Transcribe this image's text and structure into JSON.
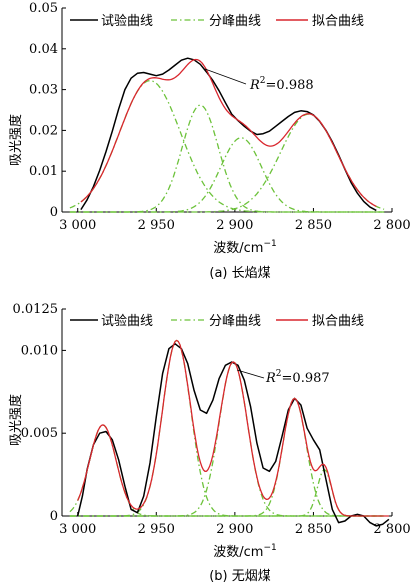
{
  "colors": {
    "experimental": "#000000",
    "component": "#6cc23a",
    "fitted": "#d9272e"
  },
  "legend": {
    "experimental": "试验曲线",
    "component": "分峰曲线",
    "fitted": "拟合曲线"
  },
  "ylabel": "吸光强度",
  "xlabel": "波数/cm",
  "xlabel_sup": "−1",
  "chart_data": [
    {
      "type": "line",
      "caption": "(a)  长焰煤",
      "annotation": {
        "symbol": "R",
        "power": "2",
        "text": "=0.988",
        "at": [
          2934,
          0.0285
        ]
      },
      "xlim": [
        3010,
        2800
      ],
      "ylim": [
        0,
        0.05
      ],
      "xticks": [
        3000,
        2950,
        2900,
        2850,
        2800
      ],
      "xticklabels": [
        "3 000",
        "2 950",
        "2 900",
        "2 850",
        "2 800"
      ],
      "yticks": [
        0,
        0.01,
        0.02,
        0.03,
        0.04,
        0.05
      ],
      "yticklabels": [
        "0",
        "0.01",
        "0.02",
        "0.03",
        "0.04",
        "0.05"
      ],
      "components": [
        {
          "center": 2954,
          "height": 0.0322,
          "width": 19.4
        },
        {
          "center": 2922,
          "height": 0.0262,
          "width": 11.5
        },
        {
          "center": 2896,
          "height": 0.0182,
          "width": 13.0
        },
        {
          "center": 2853,
          "height": 0.024,
          "width": 18.0
        }
      ],
      "experimental": [
        [
          2998,
          0.0006
        ],
        [
          2994,
          0.003
        ],
        [
          2990,
          0.0062
        ],
        [
          2986,
          0.0102
        ],
        [
          2982,
          0.0148
        ],
        [
          2978,
          0.0198
        ],
        [
          2974,
          0.0252
        ],
        [
          2970,
          0.03
        ],
        [
          2966,
          0.0328
        ],
        [
          2962,
          0.034
        ],
        [
          2958,
          0.0342
        ],
        [
          2954,
          0.0338
        ],
        [
          2950,
          0.0334
        ],
        [
          2946,
          0.0338
        ],
        [
          2942,
          0.0348
        ],
        [
          2938,
          0.036
        ],
        [
          2934,
          0.0372
        ],
        [
          2930,
          0.0377
        ],
        [
          2926,
          0.0373
        ],
        [
          2922,
          0.0362
        ],
        [
          2918,
          0.0343
        ],
        [
          2914,
          0.0322
        ],
        [
          2910,
          0.0297
        ],
        [
          2906,
          0.0268
        ],
        [
          2902,
          0.024
        ],
        [
          2898,
          0.0224
        ],
        [
          2894,
          0.021
        ],
        [
          2890,
          0.0198
        ],
        [
          2886,
          0.019
        ],
        [
          2882,
          0.0192
        ],
        [
          2878,
          0.0198
        ],
        [
          2874,
          0.021
        ],
        [
          2870,
          0.0222
        ],
        [
          2866,
          0.0234
        ],
        [
          2862,
          0.0244
        ],
        [
          2858,
          0.0248
        ],
        [
          2854,
          0.0246
        ],
        [
          2850,
          0.0238
        ],
        [
          2846,
          0.0222
        ],
        [
          2842,
          0.02
        ],
        [
          2838,
          0.0172
        ],
        [
          2834,
          0.014
        ],
        [
          2830,
          0.0105
        ],
        [
          2826,
          0.0072
        ],
        [
          2822,
          0.0046
        ],
        [
          2818,
          0.0026
        ],
        [
          2814,
          0.0012
        ],
        [
          2810,
          0.0004
        ]
      ]
    },
    {
      "type": "line",
      "caption": "(b)  无烟煤",
      "annotation": {
        "symbol": "R",
        "power": "2",
        "text": "=0.987",
        "at": [
          2894,
          0.0083
        ]
      },
      "xlim": [
        3010,
        2800
      ],
      "ylim": [
        0,
        0.0125
      ],
      "xticks": [
        3000,
        2950,
        2900,
        2850,
        2800
      ],
      "xticklabels": [
        "3 000",
        "2 950",
        "2 900",
        "2 850",
        "2 800"
      ],
      "yticks": [
        0,
        0.005,
        0.01,
        0.0125
      ],
      "yticklabels": [
        "0",
        "0.005",
        "0.010",
        "0.0125"
      ],
      "components": [
        {
          "center": 2984,
          "height": 0.0055,
          "width": 8.5
        },
        {
          "center": 2937,
          "height": 0.0106,
          "width": 9.0
        },
        {
          "center": 2901,
          "height": 0.0093,
          "width": 9.0
        },
        {
          "center": 2862,
          "height": 0.0071,
          "width": 7.5
        },
        {
          "center": 2843,
          "height": 0.0028,
          "width": 4.5
        }
      ],
      "experimental": [
        [
          3000,
          0.0
        ],
        [
          2997,
          0.0012
        ],
        [
          2994,
          0.0028
        ],
        [
          2990,
          0.0043
        ],
        [
          2986,
          0.005
        ],
        [
          2982,
          0.0051
        ],
        [
          2978,
          0.0046
        ],
        [
          2974,
          0.0034
        ],
        [
          2970,
          0.0018
        ],
        [
          2966,
          0.0004
        ],
        [
          2962,
          0.0002
        ],
        [
          2958,
          0.0012
        ],
        [
          2954,
          0.0032
        ],
        [
          2950,
          0.006
        ],
        [
          2946,
          0.0086
        ],
        [
          2942,
          0.0101
        ],
        [
          2938,
          0.0104
        ],
        [
          2934,
          0.0101
        ],
        [
          2930,
          0.0092
        ],
        [
          2926,
          0.0076
        ],
        [
          2922,
          0.0064
        ],
        [
          2918,
          0.0062
        ],
        [
          2914,
          0.007
        ],
        [
          2910,
          0.0083
        ],
        [
          2906,
          0.0091
        ],
        [
          2902,
          0.0093
        ],
        [
          2898,
          0.0091
        ],
        [
          2894,
          0.0082
        ],
        [
          2890,
          0.0066
        ],
        [
          2886,
          0.0044
        ],
        [
          2882,
          0.0029
        ],
        [
          2878,
          0.0027
        ],
        [
          2874,
          0.0033
        ],
        [
          2870,
          0.0048
        ],
        [
          2866,
          0.0064
        ],
        [
          2862,
          0.0071
        ],
        [
          2858,
          0.0067
        ],
        [
          2854,
          0.0053
        ],
        [
          2850,
          0.0046
        ],
        [
          2846,
          0.004
        ],
        [
          2842,
          0.0022
        ],
        [
          2838,
          0.0004
        ],
        [
          2834,
          -0.0004
        ],
        [
          2830,
          -0.0003
        ],
        [
          2826,
          0.0
        ],
        [
          2822,
          0.0001
        ],
        [
          2818,
          0.0
        ],
        [
          2814,
          -0.0004
        ],
        [
          2810,
          -0.0006
        ],
        [
          2806,
          -0.0005
        ],
        [
          2802,
          -0.0002
        ]
      ]
    }
  ]
}
